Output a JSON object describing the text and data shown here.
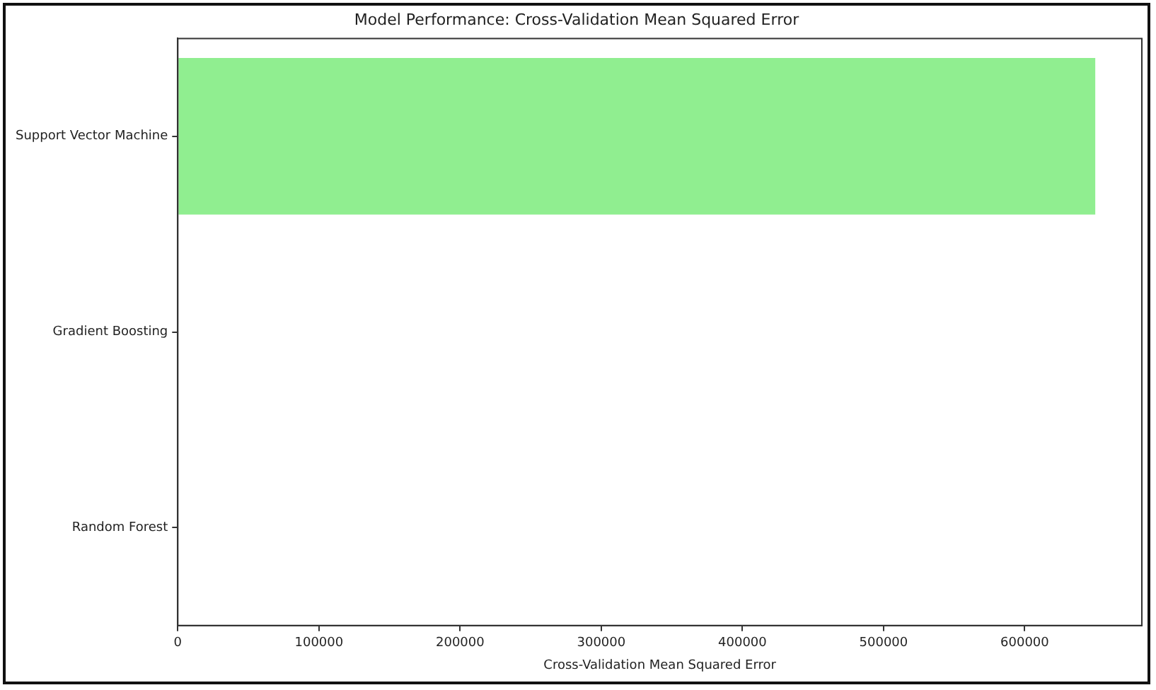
{
  "chart_data": {
    "type": "bar",
    "orientation": "horizontal",
    "title": "Model Performance: Cross-Validation Mean Squared Error",
    "xlabel": "Cross-Validation Mean Squared Error",
    "categories": [
      "Support Vector Machine",
      "Gradient Boosting",
      "Random Forest"
    ],
    "values": [
      650000,
      0,
      0
    ],
    "color": "#90ee90",
    "xlim": [
      0,
      683000
    ],
    "xticks": [
      0,
      100000,
      200000,
      300000,
      400000,
      500000,
      600000
    ],
    "grid": false,
    "legend": false
  }
}
